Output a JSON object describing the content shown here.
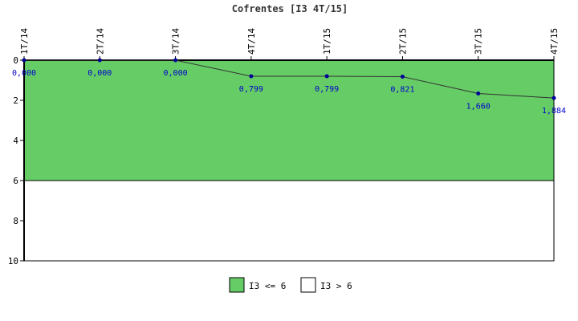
{
  "chart_data": {
    "type": "line",
    "title": "Cofrentes [I3 4T/15]",
    "categories": [
      "1T/14",
      "2T/14",
      "3T/14",
      "4T/14",
      "1T/15",
      "2T/15",
      "3T/15",
      "4T/15"
    ],
    "series": [
      {
        "values": [
          0,
          0,
          0,
          0.799,
          0.799,
          0.821,
          1.66,
          1.884
        ]
      }
    ],
    "data_labels": [
      "0,000",
      "0,000",
      "0,000",
      "0,799",
      "0,799",
      "0,821",
      "1,660",
      "1,884"
    ],
    "y_ticks": [
      "0",
      "2",
      "4",
      "6",
      "8",
      "10"
    ],
    "ylim": [
      0,
      10
    ],
    "y_inverted": true,
    "x_axis_position": "top",
    "threshold": 6,
    "bands": [
      {
        "label": "I3 <= 6",
        "from": 0,
        "to": 6,
        "color": "#66cc66"
      },
      {
        "label": "I3 > 6",
        "from": 6,
        "to": 10,
        "color": "#ffffff"
      }
    ],
    "line_color": "#333333",
    "marker_color": "#000099",
    "label_color": "#0000cc",
    "legend_position": "bottom-center",
    "grid": false
  }
}
